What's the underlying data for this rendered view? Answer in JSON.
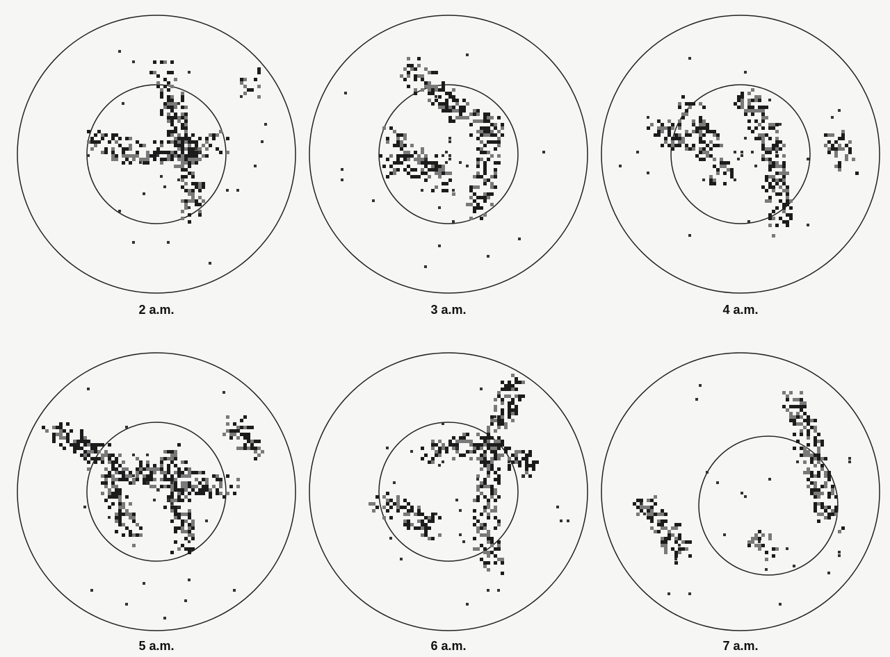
{
  "panels": [
    {
      "label": "2 a.m."
    },
    {
      "label": "3 a.m."
    },
    {
      "label": "4 a.m."
    },
    {
      "label": "5 a.m."
    },
    {
      "label": "6 a.m."
    },
    {
      "label": "7 a.m."
    }
  ]
}
